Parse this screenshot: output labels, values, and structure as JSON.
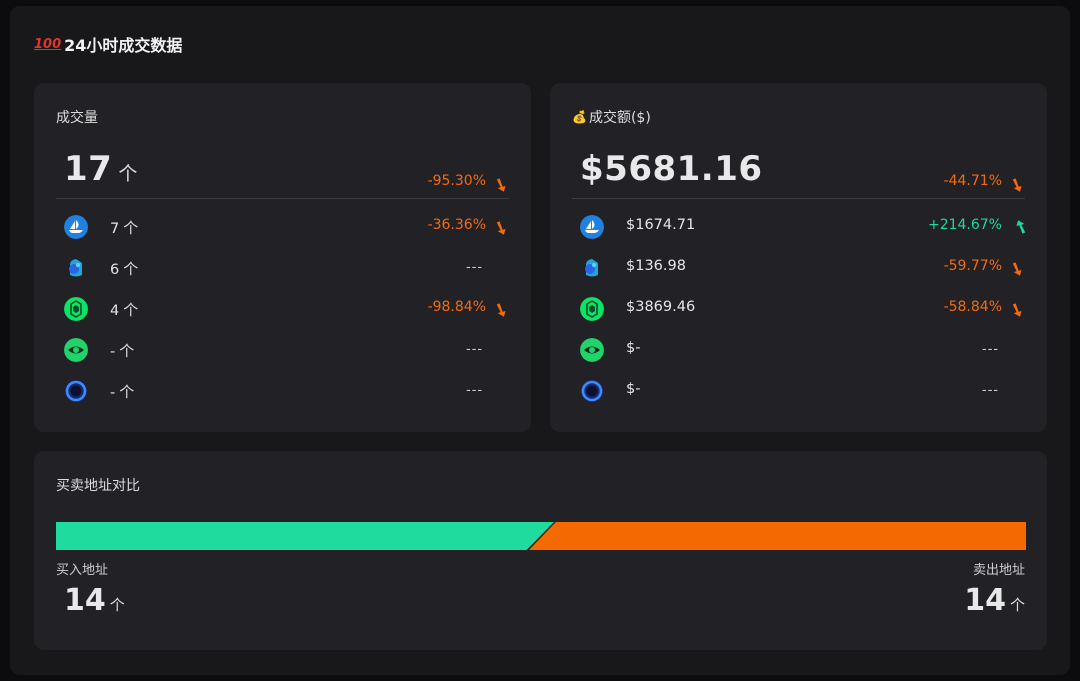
{
  "header": {
    "icon": "hundred-points-icon",
    "icon_text": "100",
    "title": "24小时成交数据"
  },
  "volume_card": {
    "title": "成交量",
    "total": {
      "value": "17",
      "unit": "个",
      "change": "-95.30%",
      "direction": "down"
    },
    "rows": [
      {
        "icon": "opensea-icon",
        "value": "7",
        "unit": "个",
        "change": "-36.36%",
        "direction": "down"
      },
      {
        "icon": "blur-icon",
        "value": "6",
        "unit": "个",
        "change": "---",
        "direction": "none"
      },
      {
        "icon": "looksrare-icon",
        "value": "4",
        "unit": "个",
        "change": "-98.84%",
        "direction": "down"
      },
      {
        "icon": "x2y2-icon",
        "value": "-",
        "unit": "个",
        "change": "---",
        "direction": "none"
      },
      {
        "icon": "sudoswap-icon",
        "value": "-",
        "unit": "个",
        "change": "---",
        "direction": "none"
      }
    ]
  },
  "amount_card": {
    "title_icon": "money-bag-icon",
    "title": "成交额($)",
    "total": {
      "value": "$5681.16",
      "change": "-44.71%",
      "direction": "down"
    },
    "rows": [
      {
        "icon": "opensea-icon",
        "value": "$1674.71",
        "change": "+214.67%",
        "direction": "up"
      },
      {
        "icon": "blur-icon",
        "value": "$136.98",
        "change": "-59.77%",
        "direction": "down"
      },
      {
        "icon": "looksrare-icon",
        "value": "$3869.46",
        "change": "-58.84%",
        "direction": "down"
      },
      {
        "icon": "x2y2-icon",
        "value": "$-",
        "change": "---",
        "direction": "none"
      },
      {
        "icon": "sudoswap-icon",
        "value": "$-",
        "change": "---",
        "direction": "none"
      }
    ]
  },
  "address_card": {
    "title": "买卖地址对比",
    "buy": {
      "label": "买入地址",
      "value": "14",
      "unit": "个",
      "share": 0.5
    },
    "sell": {
      "label": "卖出地址",
      "value": "14",
      "unit": "个",
      "share": 0.5
    }
  },
  "colors": {
    "buy": "#1fdb9e",
    "sell": "#f56a00",
    "negative": "#f56a0f",
    "positive": "#1fd89c"
  }
}
